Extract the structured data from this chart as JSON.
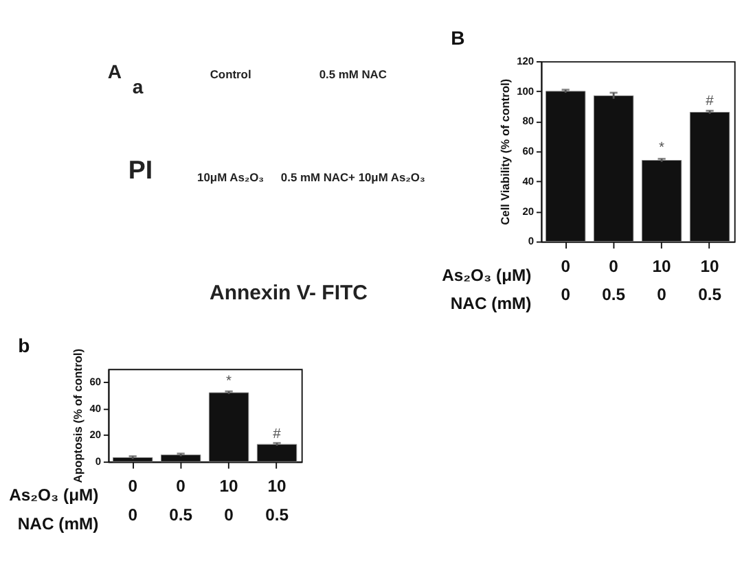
{
  "chart_data": [
    {
      "type": "other",
      "categories": [
        "Control",
        "0.5 mM NAC",
        "10μM As₂O₃",
        "0.5 mM NAC+ 10μM As₂O₃"
      ],
      "xlabel": "Annexin V- FITC",
      "ylabel": "PI",
      "annotations": [
        "A",
        "a"
      ]
    },
    {
      "type": "bar",
      "categories": [
        "0\n0",
        "0\n0.5",
        "10\n0",
        "10\n0.5"
      ],
      "xlabel": "As₂O₃ (μM)\nNAC (mM)",
      "ylabel": "Cell Viability (% of control)",
      "values": [
        100,
        97,
        54,
        86
      ],
      "errors": [
        1,
        2,
        1,
        1
      ],
      "color": "#111111",
      "ylim": [
        0,
        120
      ],
      "yticks": [
        0,
        20,
        40,
        60,
        80,
        100,
        120
      ],
      "grid": false,
      "annotations": [
        "B",
        {
          "text": "*",
          "x": "10\n0",
          "y": 58
        },
        {
          "text": "#",
          "x": "10\n0.5",
          "y": 89
        }
      ]
    },
    {
      "type": "bar",
      "categories": [
        "0\n0",
        "0\n0.5",
        "10\n0",
        "10\n0.5"
      ],
      "xlabel": "As₂O₃ (μM)\nNAC (mM)",
      "ylabel": "Apoptosis (% of control)",
      "values": [
        3,
        5,
        52,
        13
      ],
      "errors": [
        1,
        1,
        1,
        1
      ],
      "color": "#111111",
      "ylim": [
        0,
        70
      ],
      "yticks": [
        0,
        20,
        40,
        60
      ],
      "grid": false,
      "annotations": [
        "b",
        {
          "text": "*",
          "x": "10\n0",
          "y": 56
        },
        {
          "text": "#",
          "x": "10\n0.5",
          "y": 16
        }
      ]
    }
  ]
}
